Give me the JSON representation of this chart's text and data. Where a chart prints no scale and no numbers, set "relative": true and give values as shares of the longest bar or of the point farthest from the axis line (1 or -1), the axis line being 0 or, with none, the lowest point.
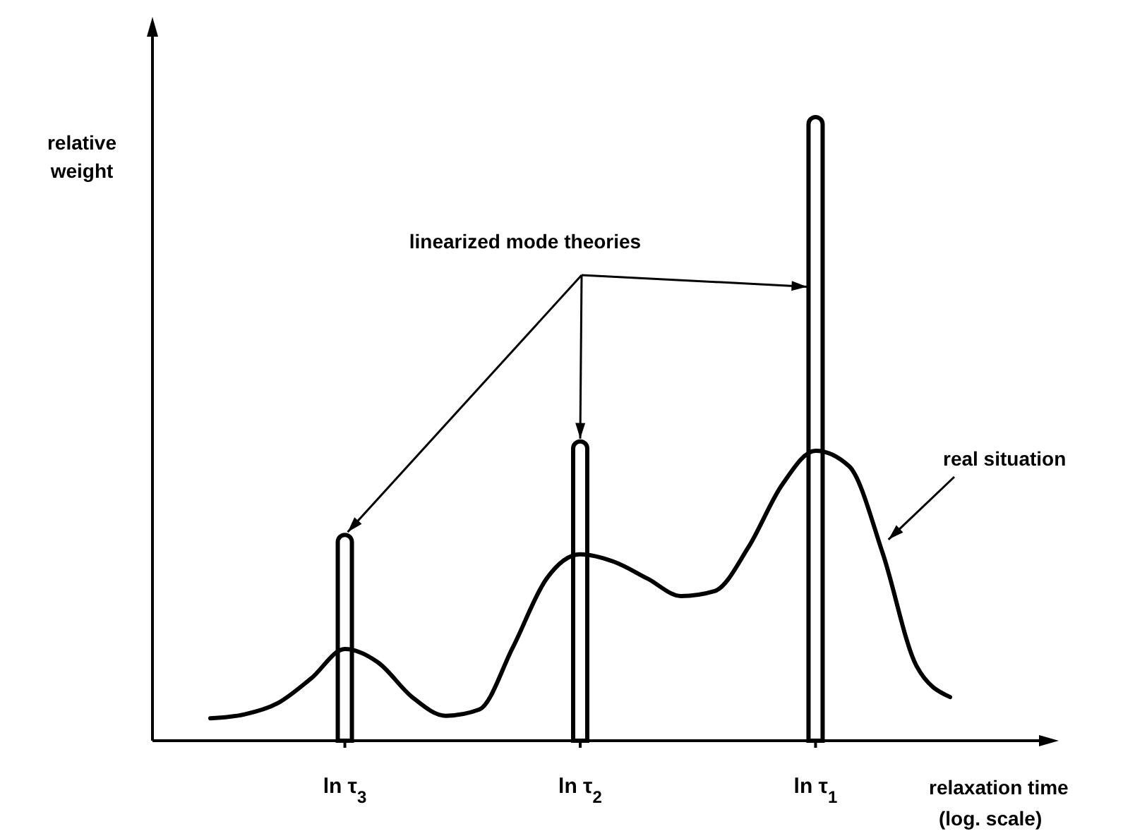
{
  "chart_data": {
    "type": "bar",
    "relative": true,
    "ylabel": "relative weight",
    "xlabel": "relaxation time\n(log. scale)",
    "categories": [
      null,
      null,
      null,
      null,
      "ln τ$_{3}$",
      null,
      null,
      null,
      null,
      null,
      null,
      "ln τ$_{2}$",
      null,
      null,
      null,
      null,
      null,
      null,
      "ln τ$_{1}$",
      null,
      null,
      null,
      null
    ],
    "annotations": [
      "linearized mode theories",
      "real situation"
    ],
    "series": [
      {
        "color": "#ffffff",
        "values": [
          null,
          null,
          null,
          null,
          0.33,
          null,
          null,
          null,
          null,
          null,
          null,
          0.48,
          null,
          null,
          null,
          null,
          null,
          null,
          1,
          null,
          null,
          null,
          null
        ]
      },
      {
        "type": "line",
        "color": "#000000",
        "values": [
          0.036,
          0.042,
          0.06,
          0.1,
          0.147,
          0.125,
          0.07,
          0.04,
          0.05,
          0.15,
          0.26,
          0.299,
          0.287,
          0.26,
          0.232,
          0.24,
          0.31,
          0.41,
          0.465,
          0.44,
          0.3,
          0.12,
          0.07
        ]
      }
    ]
  }
}
